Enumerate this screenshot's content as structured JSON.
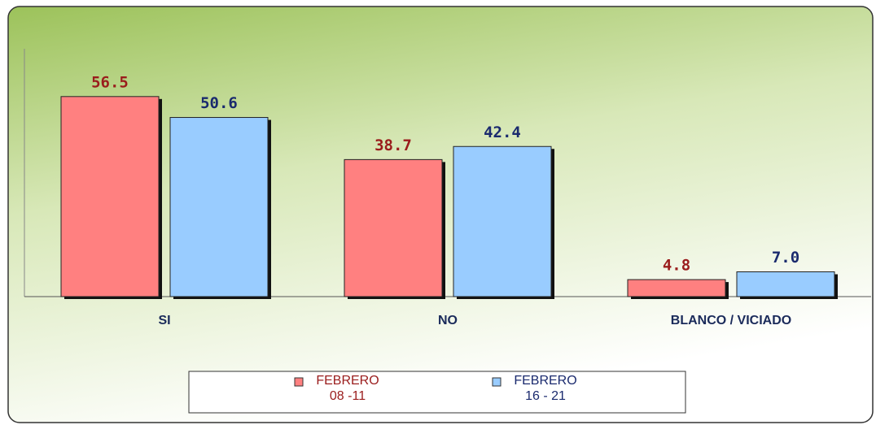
{
  "chart_data": {
    "type": "bar",
    "categories": [
      "SI",
      "NO",
      "BLANCO / VICIADO"
    ],
    "series": [
      {
        "name": "FEBRERO\n08 -11",
        "color": "#ff8080",
        "label_color": "#9a1c1c",
        "values": [
          56.5,
          38.7,
          4.8
        ],
        "value_labels": [
          "56.5",
          "38.7",
          "4.8"
        ]
      },
      {
        "name": "FEBRERO\n16 - 21",
        "color": "#99ccff",
        "label_color": "#1a2a6e",
        "values": [
          50.6,
          42.4,
          7
        ],
        "value_labels": [
          "50.6",
          "42.4",
          "7.0"
        ]
      }
    ],
    "ylim": [
      0,
      70
    ]
  }
}
